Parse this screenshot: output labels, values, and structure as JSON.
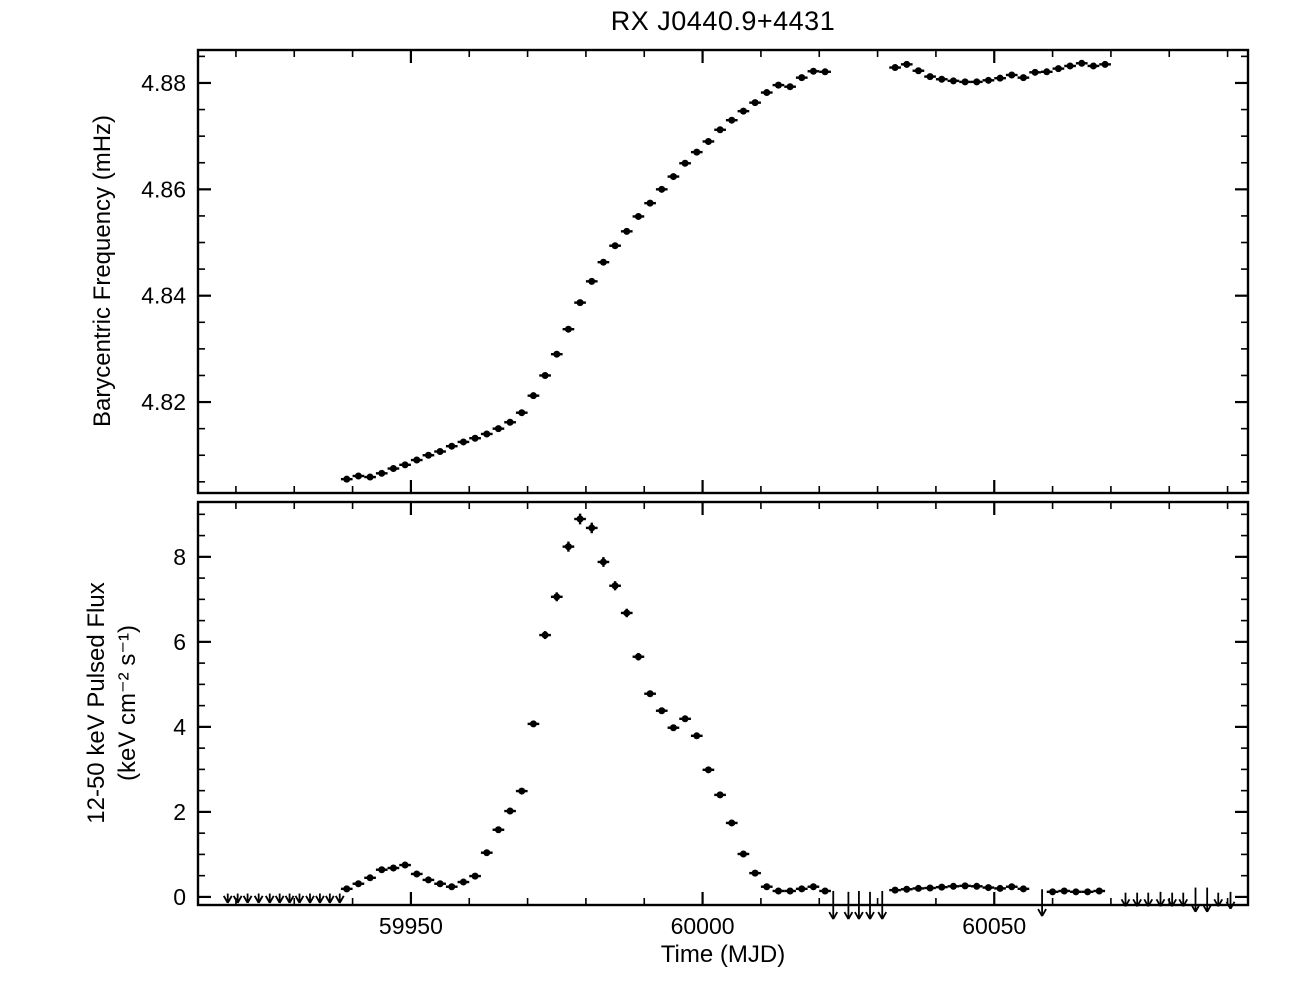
{
  "title": "RX J0440.9+4431",
  "xlabel": "Time (MJD)",
  "chart_data": {
    "type": "scatter",
    "marker": "filled-circle",
    "color": "#000000",
    "background": "#ffffff",
    "grid": false,
    "legend": null,
    "xlim": [
      59913.5,
      60093.5
    ],
    "xticks": [
      59950,
      60000,
      60050
    ],
    "xtick_labels": [
      "59950",
      "60000",
      "60050"
    ],
    "xminor_step": 10,
    "panels": [
      {
        "name": "barycentric-frequency",
        "ylabel": "Barycentric Frequency (mHz)",
        "ylim": [
          4.8029,
          4.8862
        ],
        "yticks": [
          4.82,
          4.84,
          4.86,
          4.88
        ],
        "ytick_labels": [
          "4.82",
          "4.84",
          "4.86",
          "4.88"
        ],
        "yminor_step": 0.005,
        "xerr": 1.0,
        "x": [
          59939,
          59941,
          59943,
          59945,
          59947,
          59949,
          59951,
          59953,
          59955,
          59957,
          59959,
          59961,
          59963,
          59965,
          59967,
          59969,
          59971,
          59973,
          59975,
          59977,
          59979,
          59981,
          59983,
          59985,
          59987,
          59989,
          59991,
          59993,
          59995,
          59997,
          59999,
          60001,
          60003,
          60005,
          60007,
          60009,
          60011,
          60013,
          60015,
          60017,
          60019,
          60021,
          60033,
          60035,
          60037,
          60039,
          60041,
          60043,
          60045,
          60047,
          60049,
          60051,
          60053,
          60055,
          60057,
          60059,
          60061,
          60063,
          60065,
          60067,
          60069
        ],
        "y": [
          4.8055,
          4.8061,
          4.8059,
          4.8066,
          4.8075,
          4.8082,
          4.8091,
          4.81,
          4.8107,
          4.8117,
          4.8125,
          4.8132,
          4.814,
          4.815,
          4.8162,
          4.818,
          4.8212,
          4.825,
          4.829,
          4.8337,
          4.8387,
          4.8427,
          4.8463,
          4.8494,
          4.8521,
          4.8549,
          4.8574,
          4.86,
          4.8624,
          4.8649,
          4.867,
          4.869,
          4.8712,
          4.873,
          4.8747,
          4.8763,
          4.8782,
          4.8796,
          4.8793,
          4.881,
          4.8822,
          4.8821,
          4.8829,
          4.8835,
          4.8823,
          4.8812,
          4.8807,
          4.8804,
          4.8802,
          4.8802,
          4.8805,
          4.8809,
          4.8815,
          4.881,
          4.882,
          4.8821,
          4.8827,
          4.8832,
          4.8837,
          4.8832,
          4.8835
        ]
      },
      {
        "name": "pulsed-flux",
        "ylabel_line1": "12-50 keV Pulsed Flux",
        "ylabel_line2": "(keV cm⁻² s⁻¹)",
        "ylim": [
          -0.19,
          9.29
        ],
        "yticks": [
          0,
          2,
          4,
          6,
          8
        ],
        "ytick_labels": [
          "0",
          "2",
          "4",
          "6",
          "8"
        ],
        "yminor_step": 0.5,
        "xerr": 1.0,
        "x": [
          59939,
          59941,
          59943,
          59945,
          59947,
          59949,
          59951,
          59953,
          59955,
          59957,
          59959,
          59961,
          59963,
          59965,
          59967,
          59969,
          59971,
          59973,
          59975,
          59977,
          59979,
          59981,
          59983,
          59985,
          59987,
          59989,
          59991,
          59993,
          59995,
          59997,
          59999,
          60001,
          60003,
          60005,
          60007,
          60009,
          60011,
          60013,
          60015,
          60017,
          60019,
          60021,
          60033,
          60035,
          60037,
          60039,
          60041,
          60043,
          60045,
          60047,
          60049,
          60051,
          60053,
          60055,
          60060,
          60062,
          60064,
          60066,
          60068
        ],
        "y": [
          0.19,
          0.31,
          0.45,
          0.64,
          0.68,
          0.75,
          0.54,
          0.4,
          0.31,
          0.24,
          0.35,
          0.49,
          1.04,
          1.58,
          2.02,
          2.49,
          4.07,
          6.16,
          7.06,
          8.24,
          8.89,
          8.68,
          7.88,
          7.32,
          6.68,
          5.65,
          4.78,
          4.38,
          3.98,
          4.19,
          3.79,
          2.99,
          2.4,
          1.74,
          1.01,
          0.56,
          0.24,
          0.14,
          0.14,
          0.19,
          0.24,
          0.14,
          0.16,
          0.18,
          0.2,
          0.21,
          0.23,
          0.25,
          0.26,
          0.25,
          0.22,
          0.2,
          0.24,
          0.19,
          0.12,
          0.14,
          0.12,
          0.12,
          0.14
        ],
        "upper_limits": [
          {
            "x": 59918.6,
            "top": 0.08,
            "tip": -0.14
          },
          {
            "x": 59920.3,
            "top": 0.08,
            "tip": -0.14
          },
          {
            "x": 59922.0,
            "top": 0.08,
            "tip": -0.14
          },
          {
            "x": 59923.9,
            "top": 0.08,
            "tip": -0.14
          },
          {
            "x": 59925.8,
            "top": 0.08,
            "tip": -0.14
          },
          {
            "x": 59927.5,
            "top": 0.08,
            "tip": -0.14
          },
          {
            "x": 59929.2,
            "top": 0.08,
            "tip": -0.14
          },
          {
            "x": 59930.9,
            "top": 0.08,
            "tip": -0.14
          },
          {
            "x": 59932.7,
            "top": 0.08,
            "tip": -0.14
          },
          {
            "x": 59934.4,
            "top": 0.08,
            "tip": -0.14
          },
          {
            "x": 59936.1,
            "top": 0.08,
            "tip": -0.14
          },
          {
            "x": 59937.8,
            "top": 0.08,
            "tip": -0.14
          },
          {
            "x": 60022.4,
            "top": 0.14,
            "tip": -0.52
          },
          {
            "x": 60025.0,
            "top": 0.12,
            "tip": -0.52
          },
          {
            "x": 60026.8,
            "top": 0.14,
            "tip": -0.52
          },
          {
            "x": 60028.7,
            "top": 0.12,
            "tip": -0.52
          },
          {
            "x": 60030.8,
            "top": 0.14,
            "tip": -0.52
          },
          {
            "x": 60058.2,
            "top": 0.18,
            "tip": -0.45
          },
          {
            "x": 60072.5,
            "top": 0.1,
            "tip": -0.22
          },
          {
            "x": 60074.5,
            "top": 0.1,
            "tip": -0.22
          },
          {
            "x": 60076.4,
            "top": 0.1,
            "tip": -0.22
          },
          {
            "x": 60078.5,
            "top": 0.12,
            "tip": -0.22
          },
          {
            "x": 60080.5,
            "top": 0.1,
            "tip": -0.22
          },
          {
            "x": 60082.4,
            "top": 0.1,
            "tip": -0.22
          },
          {
            "x": 60084.5,
            "top": 0.22,
            "tip": -0.35
          },
          {
            "x": 60086.5,
            "top": 0.22,
            "tip": -0.35
          },
          {
            "x": 60088.4,
            "top": 0.1,
            "tip": -0.22
          },
          {
            "x": 60090.5,
            "top": 0.12,
            "tip": -0.28
          }
        ]
      }
    ]
  }
}
